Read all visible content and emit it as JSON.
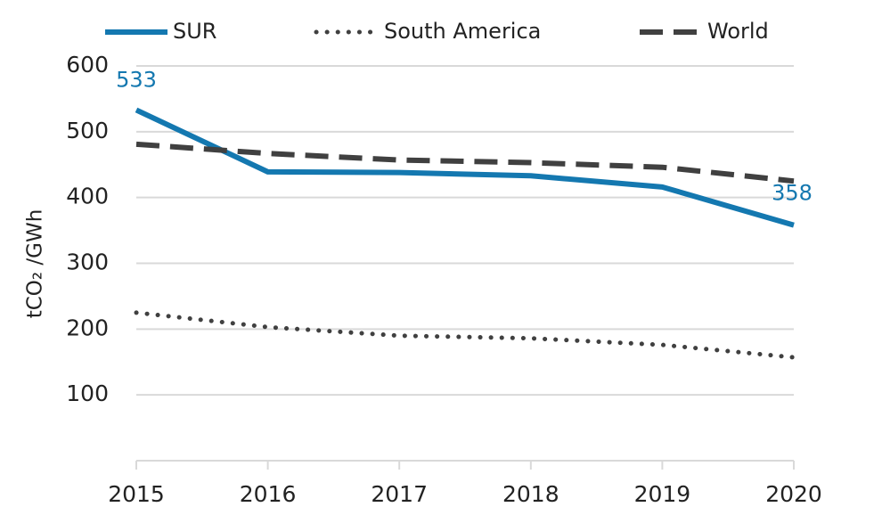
{
  "chart_data": {
    "type": "line",
    "x": [
      2015,
      2016,
      2017,
      2018,
      2019,
      2020
    ],
    "xlim": [
      2015,
      2020
    ],
    "ylabel": "tCO₂ /GWh",
    "ylim": [
      0,
      600
    ],
    "yticks": [
      100,
      200,
      300,
      400,
      500,
      600
    ],
    "grid": true,
    "legend": "top",
    "series": [
      {
        "name": "SUR",
        "color": "#1478b0",
        "dash": "solid",
        "values": [
          533,
          439,
          438,
          433,
          416,
          358
        ],
        "value_labels": [
          "533",
          null,
          null,
          null,
          null,
          "358"
        ]
      },
      {
        "name": "South America",
        "color": "#404040",
        "dash": "dotted",
        "values": [
          225,
          203,
          190,
          186,
          176,
          157
        ]
      },
      {
        "name": "World",
        "color": "#404040",
        "dash": "dashed",
        "values": [
          481,
          467,
          457,
          453,
          446,
          425
        ]
      }
    ]
  }
}
